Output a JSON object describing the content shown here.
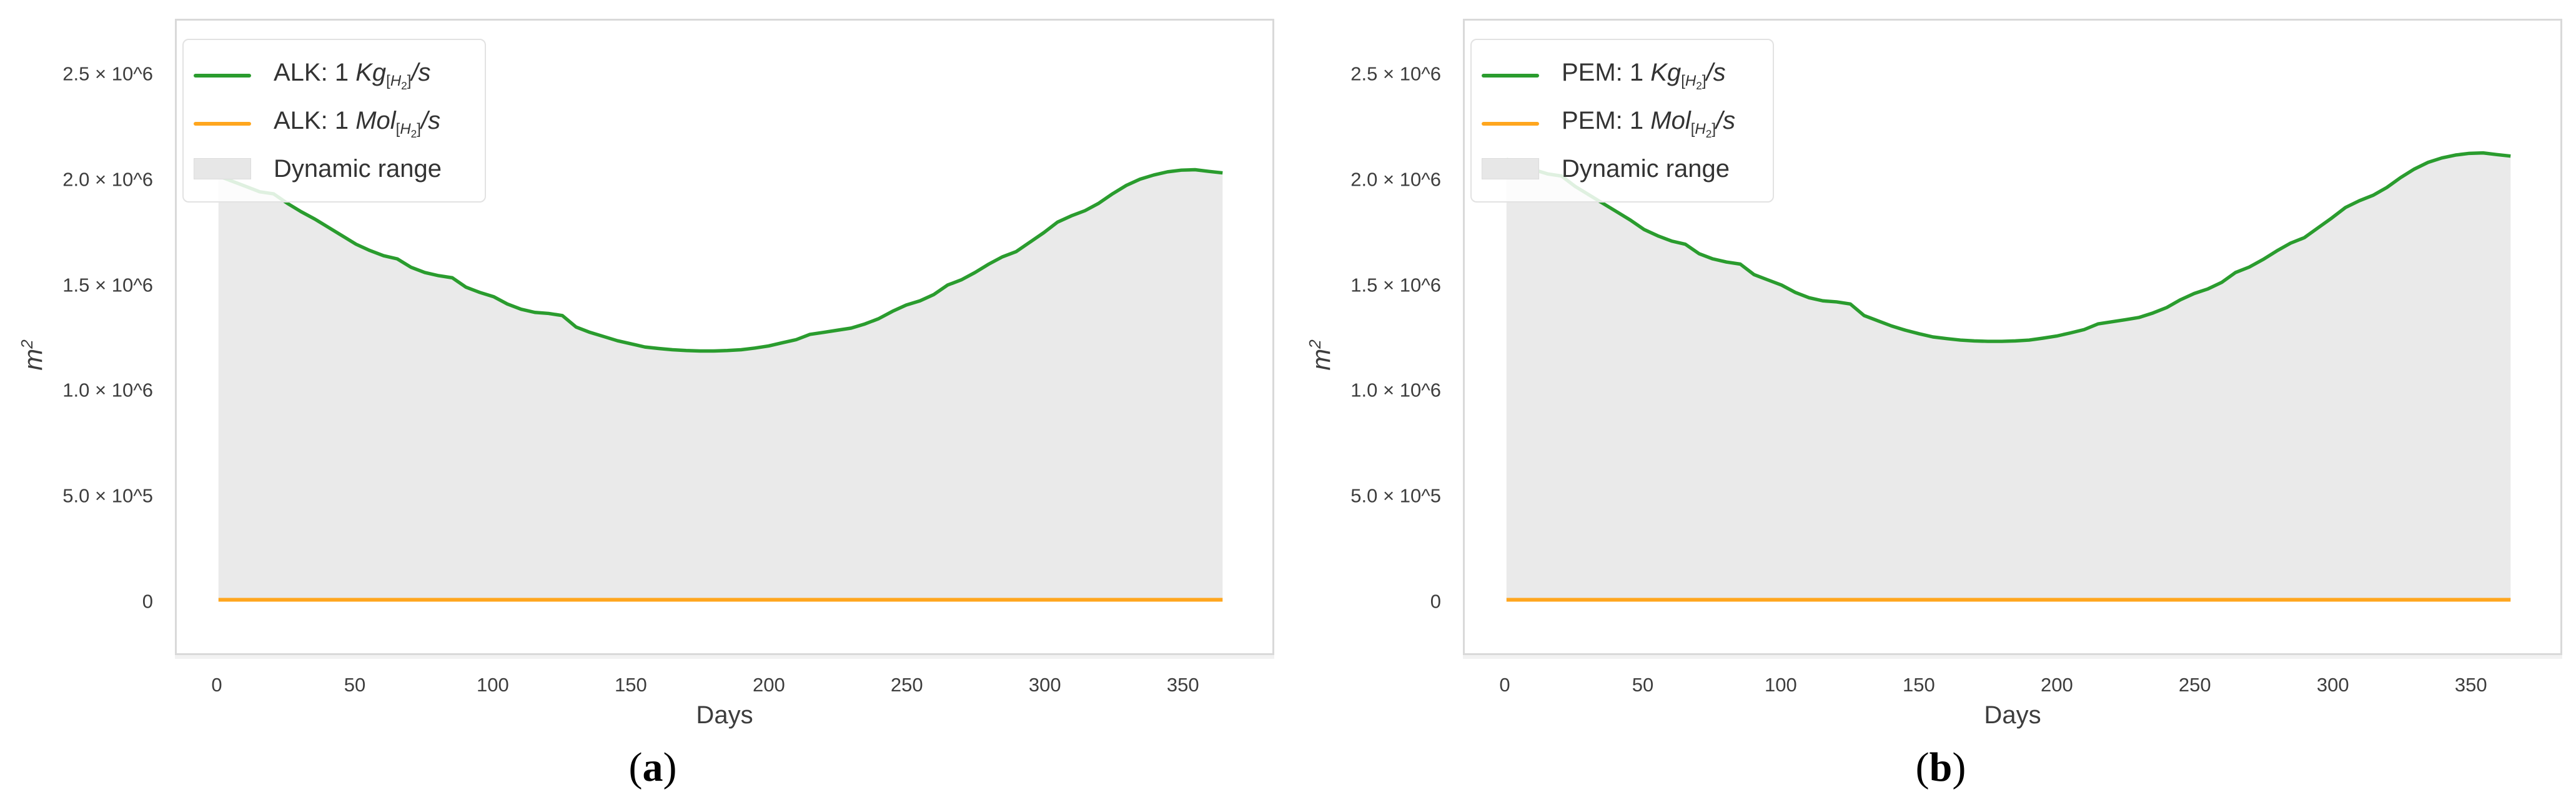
{
  "figure": {
    "background": "#ffffff"
  },
  "chart_data": [
    {
      "id": "a",
      "type": "area",
      "caption": {
        "open": "(",
        "letter": "a",
        "close": ")"
      },
      "xlabel": "Days",
      "ylabel": {
        "base": "m",
        "exponent": "2"
      },
      "grid": false,
      "legend": {
        "position": "top-left",
        "rows": [
          {
            "type": "line",
            "color": "#2a9c2e",
            "prefix": "ALK: 1 ",
            "unit": "Kg",
            "sub_open": "[",
            "sub_letter": "H",
            "sub_digit": "2",
            "sub_close": "]",
            "suffix": "/s"
          },
          {
            "type": "line",
            "color": "#ffa61e",
            "prefix": "ALK: 1 ",
            "unit": "Mol",
            "sub_open": "[",
            "sub_letter": "H",
            "sub_digit": "2",
            "sub_close": "]",
            "suffix": "/s"
          },
          {
            "type": "patch",
            "color": "#e7e7e7",
            "label": "Dynamic range"
          }
        ]
      },
      "x_axis": {
        "range": [
          0,
          365
        ],
        "ticks": [
          {
            "label": "0",
            "value": 0
          },
          {
            "label": "50",
            "value": 50
          },
          {
            "label": "100",
            "value": 100
          },
          {
            "label": "150",
            "value": 150
          },
          {
            "label": "200",
            "value": 200
          },
          {
            "label": "250",
            "value": 250
          },
          {
            "label": "300",
            "value": 300
          },
          {
            "label": "350",
            "value": 350
          }
        ]
      },
      "y_axis": {
        "unit": "m^2",
        "range": [
          0,
          2500000
        ],
        "ticks": [
          {
            "label": "2.5 × 10^6",
            "value": 2500000
          },
          {
            "label": "2.0 × 10^6",
            "value": 2000000
          },
          {
            "label": "1.5 × 10^6",
            "value": 1500000
          },
          {
            "label": "1.0 × 10^6",
            "value": 1000000
          },
          {
            "label": "5.0 × 10^5",
            "value": 500000
          },
          {
            "label": "0",
            "value": 0
          }
        ]
      },
      "series": {
        "kg": {
          "name": "ALK: 1 Kg[H2]/s",
          "color": "#2a9c2e",
          "x": [
            0,
            5,
            10,
            15,
            20,
            25,
            30,
            35,
            40,
            45,
            50,
            55,
            60,
            65,
            70,
            75,
            80,
            85,
            90,
            95,
            100,
            105,
            110,
            115,
            120,
            125,
            130,
            135,
            140,
            145,
            150,
            155,
            160,
            165,
            170,
            175,
            180,
            185,
            190,
            195,
            200,
            205,
            210,
            215,
            220,
            225,
            230,
            235,
            240,
            245,
            250,
            255,
            260,
            265,
            270,
            275,
            280,
            285,
            290,
            295,
            300,
            305,
            310,
            315,
            320,
            325,
            330,
            335,
            340,
            345,
            350,
            355,
            360,
            365
          ],
          "y": [
            2020000,
            1995000,
            1970000,
            1945000,
            1935000,
            1890000,
            1850000,
            1815000,
            1775000,
            1735000,
            1695000,
            1665000,
            1640000,
            1625000,
            1585000,
            1560000,
            1545000,
            1535000,
            1490000,
            1465000,
            1445000,
            1410000,
            1385000,
            1370000,
            1365000,
            1355000,
            1300000,
            1275000,
            1255000,
            1235000,
            1220000,
            1205000,
            1198000,
            1192000,
            1188000,
            1186000,
            1186000,
            1188000,
            1192000,
            1200000,
            1210000,
            1225000,
            1240000,
            1265000,
            1275000,
            1285000,
            1295000,
            1315000,
            1340000,
            1375000,
            1405000,
            1425000,
            1455000,
            1500000,
            1525000,
            1560000,
            1600000,
            1635000,
            1660000,
            1705000,
            1750000,
            1800000,
            1830000,
            1855000,
            1890000,
            1935000,
            1975000,
            2005000,
            2025000,
            2040000,
            2048000,
            2050000,
            2042000,
            2035000
          ]
        },
        "mol": {
          "name": "ALK: 1 Mol[H2]/s",
          "color": "#ffa61e",
          "x": [
            0,
            365
          ],
          "y": [
            0,
            0
          ]
        },
        "dynamic_range": {
          "name": "Dynamic range",
          "fill": "#eaeaea",
          "between": [
            "kg",
            "mol"
          ]
        }
      },
      "colors": {
        "frame": "#d9d9d9",
        "tick_text": "#3d3d3d"
      }
    },
    {
      "id": "b",
      "type": "area",
      "caption": {
        "open": "(",
        "letter": "b",
        "close": ")"
      },
      "xlabel": "Days",
      "ylabel": {
        "base": "m",
        "exponent": "2"
      },
      "grid": false,
      "legend": {
        "position": "top-left",
        "rows": [
          {
            "type": "line",
            "color": "#2a9c2e",
            "prefix": "PEM: 1 ",
            "unit": "Kg",
            "sub_open": "[",
            "sub_letter": "H",
            "sub_digit": "2",
            "sub_close": "]",
            "suffix": "/s"
          },
          {
            "type": "line",
            "color": "#ffa61e",
            "prefix": "PEM: 1 ",
            "unit": "Mol",
            "sub_open": "[",
            "sub_letter": "H",
            "sub_digit": "2",
            "sub_close": "]",
            "suffix": "/s"
          },
          {
            "type": "patch",
            "color": "#e7e7e7",
            "label": "Dynamic range"
          }
        ]
      },
      "x_axis": {
        "range": [
          0,
          365
        ],
        "ticks": [
          {
            "label": "0",
            "value": 0
          },
          {
            "label": "50",
            "value": 50
          },
          {
            "label": "100",
            "value": 100
          },
          {
            "label": "150",
            "value": 150
          },
          {
            "label": "200",
            "value": 200
          },
          {
            "label": "250",
            "value": 250
          },
          {
            "label": "300",
            "value": 300
          },
          {
            "label": "350",
            "value": 350
          }
        ]
      },
      "y_axis": {
        "unit": "m^2",
        "range": [
          0,
          2500000
        ],
        "ticks": [
          {
            "label": "2.5 × 10^6",
            "value": 2500000
          },
          {
            "label": "2.0 × 10^6",
            "value": 2000000
          },
          {
            "label": "1.5 × 10^6",
            "value": 1500000
          },
          {
            "label": "1.0 × 10^6",
            "value": 1000000
          },
          {
            "label": "5.0 × 10^5",
            "value": 500000
          },
          {
            "label": "0",
            "value": 0
          }
        ]
      },
      "series": {
        "kg": {
          "name": "PEM: 1 Kg[H2]/s",
          "color": "#2a9c2e",
          "x": [
            0,
            5,
            10,
            15,
            20,
            25,
            30,
            35,
            40,
            45,
            50,
            55,
            60,
            65,
            70,
            75,
            80,
            85,
            90,
            95,
            100,
            105,
            110,
            115,
            120,
            125,
            130,
            135,
            140,
            145,
            150,
            155,
            160,
            165,
            170,
            175,
            180,
            185,
            190,
            195,
            200,
            205,
            210,
            215,
            220,
            225,
            230,
            235,
            240,
            245,
            250,
            255,
            260,
            265,
            270,
            275,
            280,
            285,
            290,
            295,
            300,
            305,
            310,
            315,
            320,
            325,
            330,
            335,
            340,
            345,
            350,
            355,
            360,
            365
          ],
          "y": [
            2100000,
            2075000,
            2050000,
            2030000,
            2020000,
            1970000,
            1930000,
            1890000,
            1850000,
            1810000,
            1765000,
            1735000,
            1710000,
            1695000,
            1650000,
            1625000,
            1610000,
            1600000,
            1550000,
            1525000,
            1500000,
            1465000,
            1440000,
            1425000,
            1420000,
            1410000,
            1355000,
            1330000,
            1305000,
            1285000,
            1268000,
            1253000,
            1245000,
            1238000,
            1234000,
            1232000,
            1232000,
            1234000,
            1238000,
            1247000,
            1257000,
            1272000,
            1288000,
            1315000,
            1325000,
            1335000,
            1346000,
            1367000,
            1393000,
            1430000,
            1460000,
            1482000,
            1513000,
            1560000,
            1586000,
            1622000,
            1663000,
            1700000,
            1726000,
            1773000,
            1820000,
            1870000,
            1902000,
            1928000,
            1965000,
            2012000,
            2053000,
            2085000,
            2106000,
            2120000,
            2128000,
            2130000,
            2122000,
            2115000
          ]
        },
        "mol": {
          "name": "PEM: 1 Mol[H2]/s",
          "color": "#ffa61e",
          "x": [
            0,
            365
          ],
          "y": [
            0,
            0
          ]
        },
        "dynamic_range": {
          "name": "Dynamic range",
          "fill": "#eaeaea",
          "between": [
            "kg",
            "mol"
          ]
        }
      },
      "colors": {
        "frame": "#d9d9d9",
        "tick_text": "#3d3d3d"
      }
    }
  ]
}
